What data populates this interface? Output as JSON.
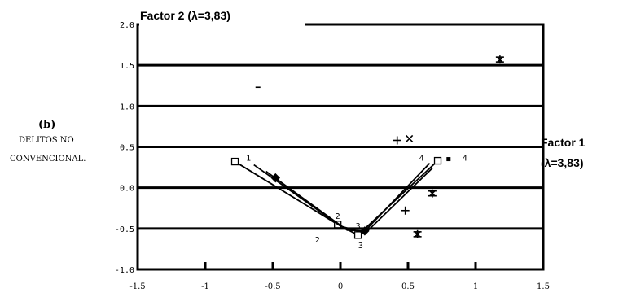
{
  "chart_data": {
    "type": "scatter",
    "title": "Factor 2 (λ=3,83)",
    "x_axis_label_lines": [
      "Factor 1",
      "(λ=3,83)"
    ],
    "panel_label": "(b)",
    "side_label_lines": [
      "DELITOS NO",
      "CONVENCIONAL."
    ],
    "xlim": [
      -1.5,
      1.5
    ],
    "ylim": [
      -1.0,
      2.0
    ],
    "x_ticks": [
      "-1.5",
      "-1",
      "-0.5",
      "0",
      "0.5",
      "1",
      "1.5"
    ],
    "y_ticks": [
      {
        "value": 2.0,
        "label": "2.0"
      },
      {
        "value": 1.5,
        "label": "1.5"
      },
      {
        "value": 1.0,
        "label": "1.0"
      },
      {
        "value": 0.5,
        "label": "0.5"
      },
      {
        "value": 0.0,
        "label": "0.0"
      },
      {
        "value": -0.5,
        "label": "-0.5"
      },
      {
        "value": -1.0,
        "label": "-1.0"
      }
    ],
    "grid": "horizontal",
    "traces": [
      {
        "marker": "square-open",
        "labels": [
          "1",
          "2",
          "3",
          "4"
        ],
        "x": [
          -0.78,
          -0.02,
          0.13,
          0.72
        ],
        "y": [
          0.32,
          -0.45,
          -0.58,
          0.33
        ]
      },
      {
        "marker": "none",
        "labels": [
          "",
          "",
          "",
          ""
        ],
        "x": [
          -0.64,
          0.0,
          0.17,
          0.66
        ],
        "y": [
          0.28,
          -0.47,
          -0.55,
          0.3
        ]
      },
      {
        "marker": "none",
        "labels": [
          "",
          "",
          "",
          ""
        ],
        "x": [
          -0.55,
          0.05,
          0.2,
          0.68
        ],
        "y": [
          0.2,
          -0.52,
          -0.53,
          0.24
        ]
      }
    ],
    "trace_point_labels": [
      {
        "text": "1",
        "x": -0.68,
        "y": 0.33
      },
      {
        "text": "2",
        "x": -0.17,
        "y": -0.67
      },
      {
        "text": "2",
        "x": -0.02,
        "y": -0.38
      },
      {
        "text": "3",
        "x": 0.13,
        "y": -0.5
      },
      {
        "text": "3",
        "x": 0.15,
        "y": -0.74
      },
      {
        "text": "4",
        "x": 0.6,
        "y": 0.33
      },
      {
        "text": "4",
        "x": 0.92,
        "y": 0.33
      }
    ],
    "points": [
      {
        "marker": "filled-diamond",
        "x": -0.48,
        "y": 0.12
      },
      {
        "marker": "plus",
        "x": 0.42,
        "y": 0.58
      },
      {
        "marker": "x",
        "x": 0.51,
        "y": 0.6
      },
      {
        "marker": "plus",
        "x": 0.48,
        "y": -0.28
      },
      {
        "marker": "asterisk",
        "x": 0.68,
        "y": -0.07
      },
      {
        "marker": "asterisk",
        "x": 0.57,
        "y": -0.57
      },
      {
        "marker": "asterisk",
        "x": 1.18,
        "y": 1.57
      },
      {
        "marker": "dash",
        "x": -0.61,
        "y": 1.23
      },
      {
        "marker": "small-square",
        "x": 0.8,
        "y": 0.35
      },
      {
        "marker": "filled-diamond",
        "x": 0.18,
        "y": -0.53
      }
    ]
  }
}
